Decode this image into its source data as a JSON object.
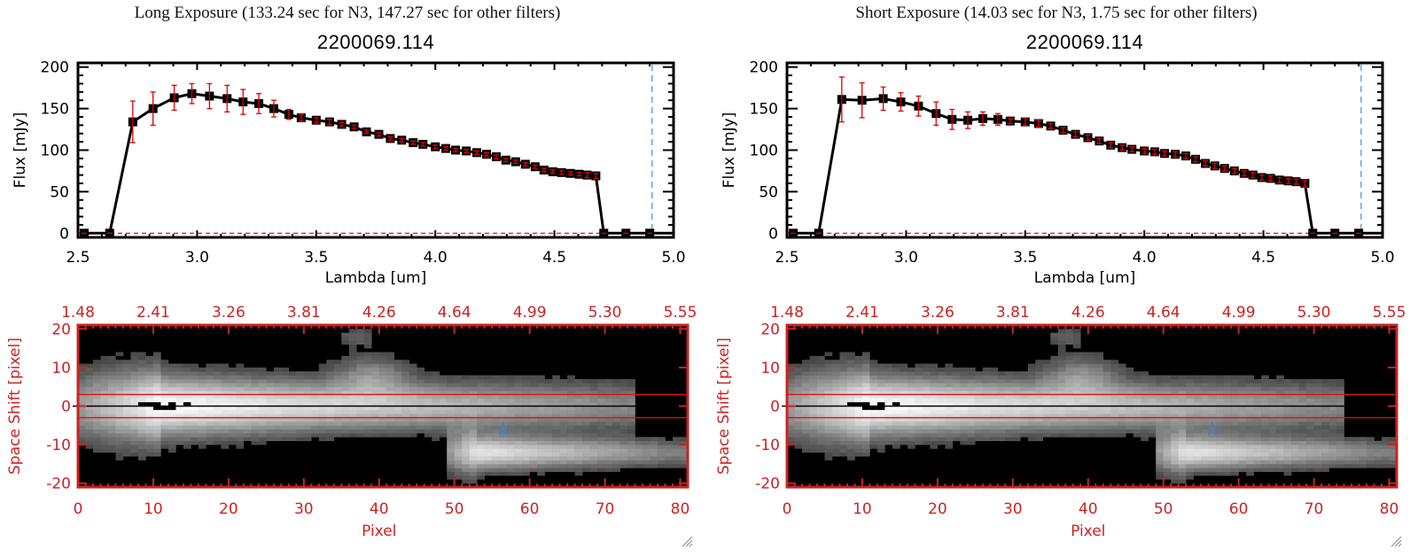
{
  "panels": [
    {
      "id": "long",
      "exposure_title": "Long Exposure (133.24 sec for N3, 147.27 sec for other filters)",
      "object_title": "2200069.114"
    },
    {
      "id": "short",
      "exposure_title": "Short Exposure (14.03 sec for N3, 1.75 sec for other filters)",
      "object_title": "2200069.114"
    }
  ],
  "colors": {
    "spectrum_line": "#000000",
    "error_bar": "#e00000",
    "zero_line": "#e00000",
    "cutoff_line": "#3a8fe0",
    "image_axis": "#cc2222",
    "aperture_line": "#dd1111",
    "star_marker": "#2a7fdf"
  },
  "chart_data": [
    {
      "type": "line",
      "panel": "long",
      "title": "2200069.114",
      "xlabel": "Lambda [um]",
      "ylabel": "Flux [mJy]",
      "xlim": [
        2.5,
        5.0
      ],
      "ylim": [
        -5,
        205
      ],
      "xticks": [
        "2.5",
        "3.0",
        "3.5",
        "4.0",
        "4.5",
        "5.0"
      ],
      "xtick_values": [
        2.5,
        3.0,
        3.5,
        4.0,
        4.5,
        5.0
      ],
      "yticks": [
        "0",
        "50",
        "100",
        "150",
        "200"
      ],
      "ytick_values": [
        0,
        50,
        100,
        150,
        200
      ],
      "cutoff_lambda": 4.91,
      "x": [
        2.526,
        2.633,
        2.73,
        2.815,
        2.904,
        2.978,
        3.052,
        3.126,
        3.193,
        3.259,
        3.322,
        3.385,
        3.437,
        3.5,
        3.556,
        3.607,
        3.659,
        3.711,
        3.763,
        3.811,
        3.859,
        3.907,
        3.948,
        4.0,
        4.044,
        4.085,
        4.13,
        4.174,
        4.215,
        4.256,
        4.296,
        4.337,
        4.378,
        4.419,
        4.456,
        4.493,
        4.53,
        4.567,
        4.604,
        4.637,
        4.674,
        4.707,
        4.8,
        4.9
      ],
      "series": [
        {
          "name": "Flux",
          "values": [
            0,
            0,
            134,
            150,
            163,
            168,
            165,
            162,
            158,
            156,
            150,
            143,
            139,
            136,
            134,
            131,
            128,
            122,
            119,
            114,
            112,
            109,
            107,
            104,
            102,
            100,
            99,
            97,
            95,
            92,
            88,
            86,
            83,
            80,
            76,
            74,
            73,
            72,
            71,
            70,
            69,
            0,
            0,
            0
          ],
          "errors": [
            0,
            0,
            25,
            20,
            15,
            12,
            15,
            16,
            15,
            12,
            10,
            6,
            4,
            3,
            3,
            2,
            2,
            2,
            2,
            2,
            2,
            2,
            2,
            2,
            2,
            2,
            2,
            2,
            2,
            2,
            2,
            2,
            2,
            2,
            2,
            2,
            2,
            2,
            2,
            3,
            3,
            0,
            0,
            0
          ]
        }
      ]
    },
    {
      "type": "line",
      "panel": "short",
      "title": "2200069.114",
      "xlabel": "Lambda [um]",
      "ylabel": "Flux [mJy]",
      "xlim": [
        2.5,
        5.0
      ],
      "ylim": [
        -5,
        205
      ],
      "xticks": [
        "2.5",
        "3.0",
        "3.5",
        "4.0",
        "4.5",
        "5.0"
      ],
      "xtick_values": [
        2.5,
        3.0,
        3.5,
        4.0,
        4.5,
        5.0
      ],
      "yticks": [
        "0",
        "50",
        "100",
        "150",
        "200"
      ],
      "ytick_values": [
        0,
        50,
        100,
        150,
        200
      ],
      "cutoff_lambda": 4.91,
      "x": [
        2.526,
        2.633,
        2.73,
        2.815,
        2.904,
        2.978,
        3.052,
        3.126,
        3.193,
        3.259,
        3.322,
        3.385,
        3.437,
        3.5,
        3.556,
        3.607,
        3.659,
        3.711,
        3.763,
        3.811,
        3.859,
        3.907,
        3.948,
        4.0,
        4.044,
        4.085,
        4.13,
        4.174,
        4.215,
        4.256,
        4.296,
        4.337,
        4.378,
        4.419,
        4.456,
        4.493,
        4.53,
        4.567,
        4.604,
        4.637,
        4.674,
        4.707,
        4.8,
        4.9
      ],
      "series": [
        {
          "name": "Flux",
          "values": [
            0,
            0,
            161,
            160,
            162,
            158,
            153,
            144,
            137,
            136,
            138,
            137,
            135,
            134,
            132,
            129,
            124,
            119,
            115,
            111,
            106,
            103,
            101,
            99,
            98,
            96,
            95,
            93,
            89,
            84,
            81,
            78,
            75,
            72,
            70,
            67,
            66,
            64,
            63,
            62,
            60,
            0,
            0,
            0
          ],
          "errors": [
            0,
            0,
            27,
            21,
            14,
            11,
            12,
            14,
            12,
            10,
            8,
            7,
            3,
            4,
            4,
            3,
            3,
            3,
            3,
            3,
            3,
            3,
            3,
            3,
            3,
            3,
            3,
            3,
            3,
            3,
            3,
            3,
            3,
            3,
            3,
            3,
            3,
            3,
            3,
            3,
            4,
            0,
            0,
            0
          ]
        }
      ]
    },
    {
      "type": "heatmap",
      "panel": "long",
      "xlabel": "Pixel",
      "ylabel": "Space Shift [pixel]",
      "xlim": [
        0,
        81
      ],
      "ylim": [
        -21,
        21
      ],
      "xticks": [
        "0",
        "10",
        "20",
        "30",
        "40",
        "50",
        "60",
        "70",
        "80"
      ],
      "xtick_values": [
        0,
        10,
        20,
        30,
        40,
        50,
        60,
        70,
        80
      ],
      "top_xticks": [
        "1.48",
        "2.41",
        "3.26",
        "3.81",
        "4.26",
        "4.64",
        "4.99",
        "5.30",
        "5.55"
      ],
      "yticks": [
        "20",
        "10",
        "0",
        "-10",
        "-20"
      ],
      "ytick_values": [
        20,
        10,
        0,
        -10,
        -20
      ],
      "aperture": [
        -3,
        3
      ],
      "center_row": 0,
      "star": {
        "x": 56.5,
        "y": -6
      },
      "colormap": "grayscale",
      "sources": [
        {
          "name": "primary-trace",
          "x_start": 0,
          "x_peak": 11,
          "x_end": 74,
          "y": 0,
          "peak": 1.0,
          "width": 4.5
        },
        {
          "name": "secondary-trace",
          "x_start": 49,
          "x_peak": 53,
          "x_end": 81,
          "y": -12,
          "peak": 0.85,
          "width": 2.6
        },
        {
          "name": "blob-upper",
          "x": 39,
          "y": 8,
          "peak": 0.35,
          "width": 2.5
        },
        {
          "name": "blob-top",
          "x": 37,
          "y": 18,
          "peak": 0.2,
          "width": 1.2
        }
      ]
    },
    {
      "type": "heatmap",
      "panel": "short",
      "xlabel": "Pixel",
      "ylabel": "Space Shift [pixel]",
      "xlim": [
        0,
        81
      ],
      "ylim": [
        -21,
        21
      ],
      "xticks": [
        "0",
        "10",
        "20",
        "30",
        "40",
        "50",
        "60",
        "70",
        "80"
      ],
      "xtick_values": [
        0,
        10,
        20,
        30,
        40,
        50,
        60,
        70,
        80
      ],
      "top_xticks": [
        "1.48",
        "2.41",
        "3.26",
        "3.81",
        "4.26",
        "4.64",
        "4.99",
        "5.30",
        "5.55"
      ],
      "yticks": [
        "20",
        "10",
        "0",
        "-10",
        "-20"
      ],
      "ytick_values": [
        20,
        10,
        0,
        -10,
        -20
      ],
      "aperture": [
        -3,
        3
      ],
      "center_row": 0,
      "star": {
        "x": 56.5,
        "y": -6
      },
      "colormap": "grayscale",
      "sources": [
        {
          "name": "primary-trace",
          "x_start": 0,
          "x_peak": 11,
          "x_end": 74,
          "y": 0,
          "peak": 1.0,
          "width": 4.5
        },
        {
          "name": "secondary-trace",
          "x_start": 49,
          "x_peak": 53,
          "x_end": 81,
          "y": -12,
          "peak": 0.85,
          "width": 2.6
        },
        {
          "name": "blob-upper",
          "x": 39,
          "y": 8,
          "peak": 0.35,
          "width": 2.5
        },
        {
          "name": "blob-top",
          "x": 37,
          "y": 18,
          "peak": 0.2,
          "width": 1.2
        }
      ]
    }
  ]
}
